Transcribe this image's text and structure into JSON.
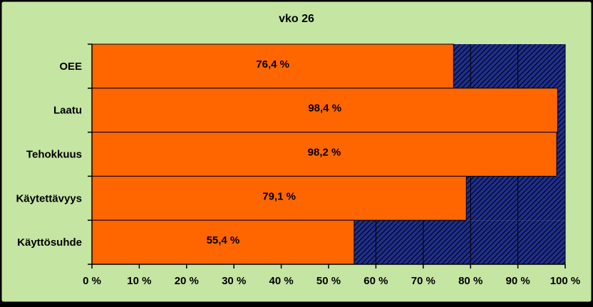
{
  "chart_data": {
    "type": "bar",
    "orientation": "horizontal",
    "stacked": "100%",
    "title": "vko 26",
    "categories": [
      "OEE",
      "Laatu",
      "Tehokkuus",
      "Käytettävyys",
      "Käyttösuhde"
    ],
    "values": [
      76.4,
      98.4,
      98.2,
      79.1,
      55.4
    ],
    "value_labels": [
      "76,4 %",
      "98,4 %",
      "98,2 %",
      "79,1 %",
      "55,4 %"
    ],
    "remainder_fill": "hatched",
    "xlim": [
      0,
      100
    ],
    "x_ticks": [
      "0 %",
      "10 %",
      "20 %",
      "30 %",
      "40 %",
      "50 %",
      "60 %",
      "70 %",
      "80 %",
      "90 %",
      "100 %"
    ],
    "grid": "vertical",
    "legend": "none",
    "colors": {
      "background": "#C5E5A3",
      "value_bar": "#FF6600",
      "remainder": "#1F2F8F",
      "hatch": "#000000",
      "grid": "#000000"
    }
  }
}
